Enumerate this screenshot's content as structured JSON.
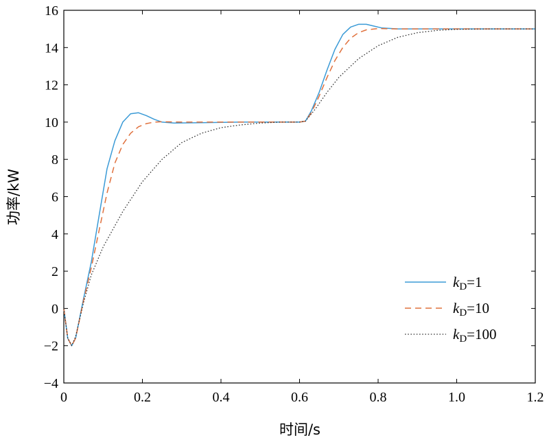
{
  "chart_data": {
    "type": "line",
    "xlabel": "时间/s",
    "ylabel": "功率/kW",
    "xlim": [
      0,
      1.2
    ],
    "ylim": [
      -4,
      16
    ],
    "x_ticks": [
      "0",
      "0.2",
      "0.4",
      "0.6",
      "0.8",
      "1.0",
      "1.2"
    ],
    "y_ticks": [
      "−4",
      "−2",
      "0",
      "2",
      "4",
      "6",
      "8",
      "10",
      "12",
      "14",
      "16"
    ],
    "grid": false,
    "legend_position": "bottom-right",
    "series": [
      {
        "name": "kD=1",
        "label_main": "k",
        "label_sub": "D",
        "label_rest": "=1",
        "color": "#3a9ad6",
        "dash": "solid",
        "points": [
          [
            0,
            0
          ],
          [
            0.01,
            -1.6
          ],
          [
            0.02,
            -2.0
          ],
          [
            0.03,
            -1.6
          ],
          [
            0.05,
            0.5
          ],
          [
            0.07,
            2.5
          ],
          [
            0.09,
            5.0
          ],
          [
            0.11,
            7.5
          ],
          [
            0.13,
            9.0
          ],
          [
            0.15,
            10.0
          ],
          [
            0.17,
            10.45
          ],
          [
            0.19,
            10.5
          ],
          [
            0.21,
            10.35
          ],
          [
            0.23,
            10.15
          ],
          [
            0.25,
            10.0
          ],
          [
            0.28,
            9.95
          ],
          [
            0.35,
            9.97
          ],
          [
            0.45,
            10.0
          ],
          [
            0.55,
            10.0
          ],
          [
            0.6,
            10.0
          ],
          [
            0.615,
            10.05
          ],
          [
            0.63,
            10.6
          ],
          [
            0.65,
            11.6
          ],
          [
            0.67,
            12.8
          ],
          [
            0.69,
            13.9
          ],
          [
            0.71,
            14.7
          ],
          [
            0.73,
            15.1
          ],
          [
            0.75,
            15.25
          ],
          [
            0.77,
            15.25
          ],
          [
            0.79,
            15.15
          ],
          [
            0.81,
            15.05
          ],
          [
            0.85,
            15.0
          ],
          [
            0.9,
            15.0
          ],
          [
            1.0,
            15.0
          ],
          [
            1.2,
            15.0
          ]
        ]
      },
      {
        "name": "kD=10",
        "label_main": "k",
        "label_sub": "D",
        "label_rest": "=10",
        "color": "#e0703c",
        "dash": "dashed",
        "points": [
          [
            0,
            0
          ],
          [
            0.01,
            -1.6
          ],
          [
            0.02,
            -2.0
          ],
          [
            0.03,
            -1.6
          ],
          [
            0.05,
            0.4
          ],
          [
            0.07,
            2.2
          ],
          [
            0.09,
            4.2
          ],
          [
            0.11,
            6.2
          ],
          [
            0.13,
            7.8
          ],
          [
            0.15,
            8.8
          ],
          [
            0.17,
            9.4
          ],
          [
            0.19,
            9.75
          ],
          [
            0.21,
            9.92
          ],
          [
            0.23,
            10.0
          ],
          [
            0.25,
            10.02
          ],
          [
            0.3,
            10.0
          ],
          [
            0.45,
            10.0
          ],
          [
            0.6,
            10.0
          ],
          [
            0.615,
            10.05
          ],
          [
            0.63,
            10.5
          ],
          [
            0.65,
            11.4
          ],
          [
            0.67,
            12.4
          ],
          [
            0.69,
            13.3
          ],
          [
            0.71,
            14.0
          ],
          [
            0.73,
            14.5
          ],
          [
            0.75,
            14.8
          ],
          [
            0.77,
            14.95
          ],
          [
            0.8,
            15.02
          ],
          [
            0.85,
            15.0
          ],
          [
            1.0,
            15.0
          ],
          [
            1.2,
            15.0
          ]
        ]
      },
      {
        "name": "kD=100",
        "label_main": "k",
        "label_sub": "D",
        "label_rest": "=100",
        "color": "#333333",
        "dash": "dotted",
        "points": [
          [
            0,
            0
          ],
          [
            0.01,
            -1.6
          ],
          [
            0.02,
            -2.0
          ],
          [
            0.03,
            -1.5
          ],
          [
            0.05,
            0.3
          ],
          [
            0.07,
            1.8
          ],
          [
            0.1,
            3.3
          ],
          [
            0.15,
            5.2
          ],
          [
            0.2,
            6.8
          ],
          [
            0.25,
            8.0
          ],
          [
            0.3,
            8.9
          ],
          [
            0.35,
            9.4
          ],
          [
            0.4,
            9.7
          ],
          [
            0.45,
            9.85
          ],
          [
            0.5,
            9.95
          ],
          [
            0.55,
            10.0
          ],
          [
            0.6,
            10.0
          ],
          [
            0.615,
            10.05
          ],
          [
            0.64,
            10.7
          ],
          [
            0.67,
            11.6
          ],
          [
            0.7,
            12.4
          ],
          [
            0.75,
            13.4
          ],
          [
            0.8,
            14.1
          ],
          [
            0.85,
            14.55
          ],
          [
            0.9,
            14.8
          ],
          [
            0.95,
            14.92
          ],
          [
            1.0,
            14.98
          ],
          [
            1.1,
            15.0
          ],
          [
            1.2,
            15.0
          ]
        ]
      }
    ]
  }
}
